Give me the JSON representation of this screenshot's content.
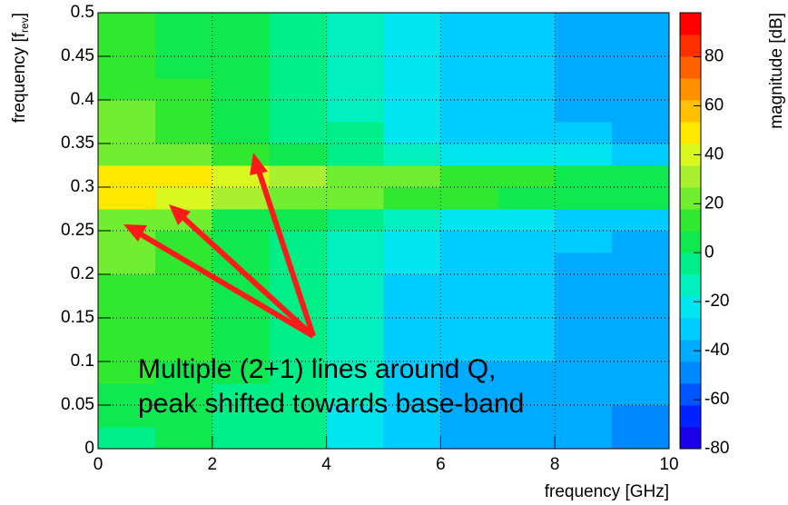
{
  "chart_data": {
    "type": "heatmap",
    "xlabel": "frequency [GHz]",
    "ylabel": {
      "text": "frequency [f",
      "sub": "rev",
      "end": "]"
    },
    "colorbar_label": "magnitude [dB]",
    "annotation": [
      "Multiple (2+1) lines around Q,",
      "peak shifted towards base-band"
    ],
    "annotation_color": "#ff1a1a",
    "xlim": [
      0,
      10
    ],
    "xticks": [
      0,
      2,
      4,
      6,
      8,
      10
    ],
    "ylim": [
      0,
      0.5
    ],
    "yticks": [
      0,
      0.05,
      0.1,
      0.15,
      0.2,
      0.25,
      0.3,
      0.35,
      0.4,
      0.45,
      0.5
    ],
    "zlim": [
      -80,
      98
    ],
    "zticks": [
      -80,
      -60,
      -40,
      -20,
      0,
      20,
      40,
      60,
      80
    ],
    "grid": true,
    "colors": [
      "#1a00e8",
      "#0022ff",
      "#0055ff",
      "#0088ff",
      "#00aaff",
      "#00ccff",
      "#00e6f0",
      "#00f0c0",
      "#00ee88",
      "#10e850",
      "#30e830",
      "#70ee30",
      "#a8f030",
      "#d8f820",
      "#ffe800",
      "#ffc000",
      "#ff9000",
      "#ff6000",
      "#ff3000",
      "#ff0000"
    ],
    "xbins": [
      0,
      1,
      2,
      3,
      4,
      5,
      6,
      7,
      8,
      9,
      10
    ],
    "ybins": [
      0,
      0.025,
      0.05,
      0.075,
      0.1,
      0.125,
      0.15,
      0.175,
      0.2,
      0.225,
      0.25,
      0.275,
      0.3,
      0.325,
      0.35,
      0.375,
      0.4,
      0.425,
      0.45,
      0.475,
      0.5
    ],
    "z": [
      [
        0,
        5,
        0,
        -8,
        -18,
        -30,
        -38,
        -38,
        -42,
        -45
      ],
      [
        5,
        8,
        0,
        -8,
        -18,
        -30,
        -38,
        -38,
        -42,
        -45
      ],
      [
        8,
        8,
        0,
        -6,
        -16,
        -30,
        -36,
        -36,
        -40,
        -44
      ],
      [
        10,
        8,
        2,
        -6,
        -16,
        -28,
        -36,
        -36,
        -40,
        -42
      ],
      [
        12,
        10,
        2,
        -5,
        -15,
        -28,
        -35,
        -35,
        -40,
        -42
      ],
      [
        12,
        10,
        2,
        -5,
        -15,
        -28,
        -35,
        -35,
        -40,
        -42
      ],
      [
        14,
        10,
        2,
        -5,
        -15,
        -28,
        -35,
        -35,
        -38,
        -42
      ],
      [
        15,
        10,
        3,
        -5,
        -15,
        -28,
        -35,
        -35,
        -38,
        -40
      ],
      [
        18,
        12,
        4,
        -3,
        -12,
        -25,
        -32,
        -32,
        -36,
        -38
      ],
      [
        20,
        14,
        5,
        -2,
        -10,
        -22,
        -30,
        -30,
        -34,
        -36
      ],
      [
        25,
        18,
        8,
        2,
        -5,
        -15,
        -22,
        -22,
        -28,
        -30
      ],
      [
        45,
        40,
        30,
        25,
        20,
        15,
        10,
        8,
        5,
        5
      ],
      [
        50,
        45,
        40,
        30,
        25,
        20,
        15,
        10,
        8,
        5
      ],
      [
        25,
        18,
        10,
        5,
        -2,
        -10,
        -18,
        -20,
        -25,
        -28
      ],
      [
        20,
        14,
        6,
        0,
        -8,
        -20,
        -28,
        -30,
        -34,
        -36
      ],
      [
        18,
        12,
        4,
        -2,
        -10,
        -22,
        -30,
        -32,
        -36,
        -38
      ],
      [
        15,
        10,
        2,
        -3,
        -12,
        -25,
        -32,
        -35,
        -38,
        -40
      ],
      [
        12,
        8,
        2,
        -3,
        -12,
        -25,
        -32,
        -35,
        -38,
        -40
      ],
      [
        10,
        8,
        2,
        -3,
        -12,
        -25,
        -32,
        -35,
        -38,
        -40
      ],
      [
        10,
        8,
        2,
        -3,
        -12,
        -25,
        -32,
        -35,
        -38,
        -40
      ]
    ]
  }
}
